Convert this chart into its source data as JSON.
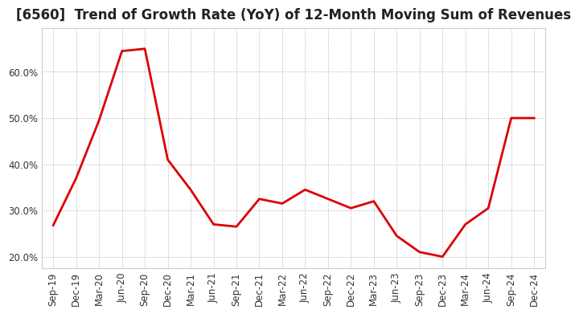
{
  "title": "[6560]  Trend of Growth Rate (YoY) of 12-Month Moving Sum of Revenues",
  "line_color": "#dd0000",
  "background_color": "#ffffff",
  "grid_color": "#aaaaaa",
  "x_labels": [
    "Sep-19",
    "Dec-19",
    "Mar-20",
    "Jun-20",
    "Sep-20",
    "Dec-20",
    "Mar-21",
    "Jun-21",
    "Sep-21",
    "Dec-21",
    "Mar-22",
    "Jun-22",
    "Sep-22",
    "Dec-22",
    "Mar-23",
    "Jun-23",
    "Sep-23",
    "Dec-23",
    "Mar-24",
    "Jun-24",
    "Sep-24",
    "Dec-24"
  ],
  "y_values": [
    0.268,
    0.37,
    0.495,
    0.645,
    0.65,
    0.41,
    0.345,
    0.27,
    0.265,
    0.325,
    0.315,
    0.345,
    0.325,
    0.305,
    0.32,
    0.245,
    0.21,
    0.2,
    0.27,
    0.305,
    0.5,
    0.5
  ],
  "ylim": [
    0.175,
    0.695
  ],
  "yticks": [
    0.2,
    0.3,
    0.4,
    0.5,
    0.6
  ],
  "title_fontsize": 12,
  "tick_fontsize": 8.5,
  "line_width": 2.0
}
